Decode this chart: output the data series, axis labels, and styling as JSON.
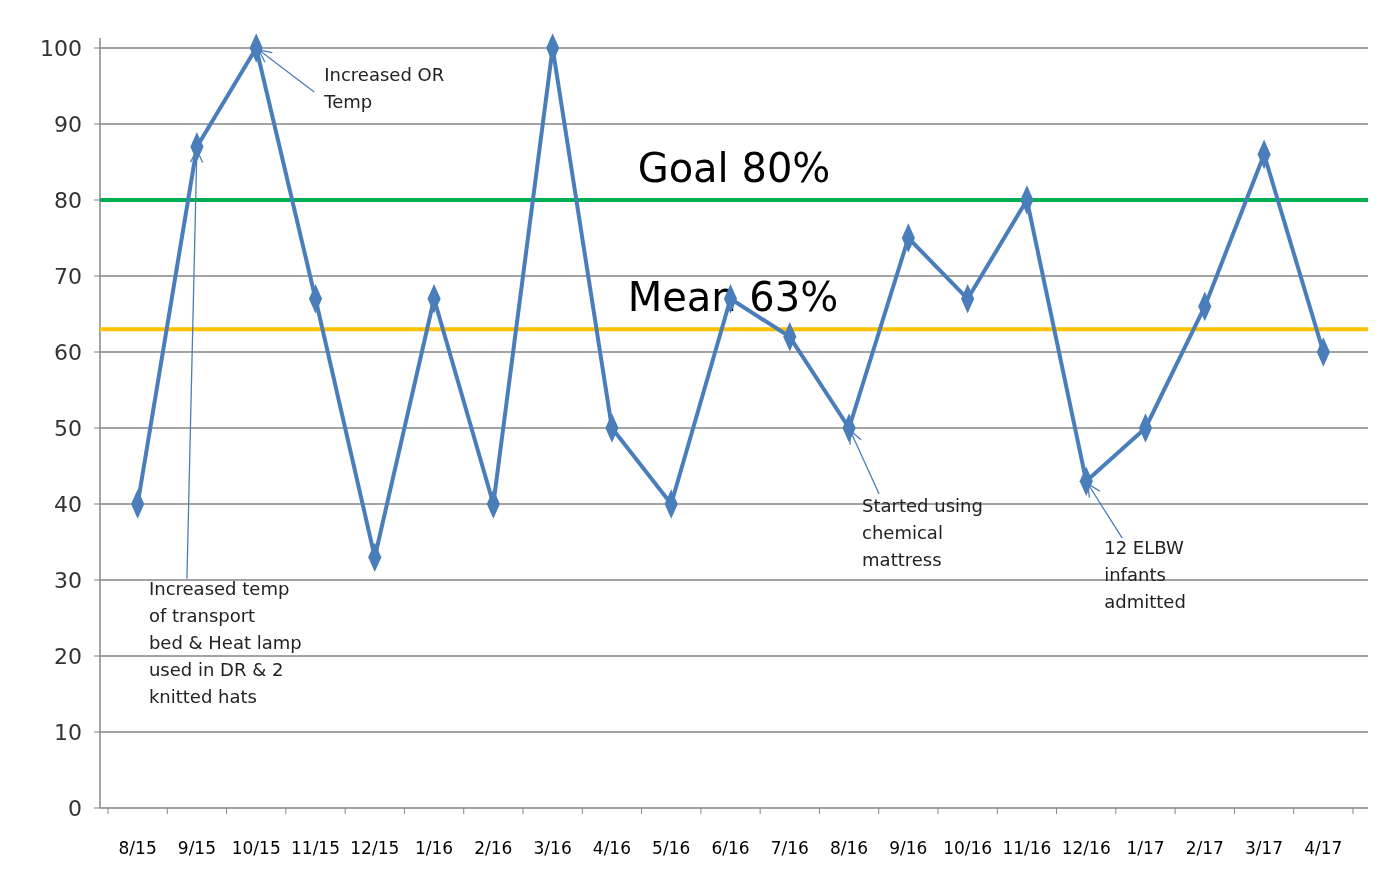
{
  "chart_data": {
    "type": "line",
    "categories": [
      "8/15",
      "9/15",
      "10/15",
      "11/15",
      "12/15",
      "1/16",
      "2/16",
      "3/16",
      "4/16",
      "5/16",
      "6/16",
      "7/16",
      "8/16",
      "9/16",
      "10/16",
      "11/16",
      "12/16",
      "1/17",
      "2/17",
      "3/17",
      "4/17"
    ],
    "series": [
      {
        "color": "#4a7ebb",
        "values": [
          40,
          87,
          100,
          67,
          33,
          67,
          40,
          100,
          50,
          40,
          67,
          62,
          50,
          75,
          67,
          80,
          43,
          50,
          66,
          86,
          60
        ]
      }
    ],
    "ylim": [
      0,
      100
    ],
    "yticks": [
      0,
      10,
      20,
      30,
      40,
      50,
      60,
      70,
      80,
      90,
      100
    ],
    "grid": "y",
    "marker": "diamond",
    "line_style": "solid",
    "ref_lines": [
      {
        "axis": "y",
        "value": 80,
        "label": "Goal 80%",
        "color": "#00b050"
      },
      {
        "axis": "y",
        "value": 63,
        "label": "Mean 63%",
        "color": "#ffc000"
      }
    ],
    "annotations": [
      {
        "text": "Increased OR Temp",
        "x": "10/15",
        "y": 100
      },
      {
        "text": "Increased temp of transport bed & Heat lamp used in DR & 2 knitted hats",
        "x": "9/15",
        "y": 87
      },
      {
        "text": "Started using chemical mattress",
        "x": "8/16",
        "y": 50
      },
      {
        "text": "12 ELBW infants admitted",
        "x": "12/16",
        "y": 43
      }
    ]
  }
}
